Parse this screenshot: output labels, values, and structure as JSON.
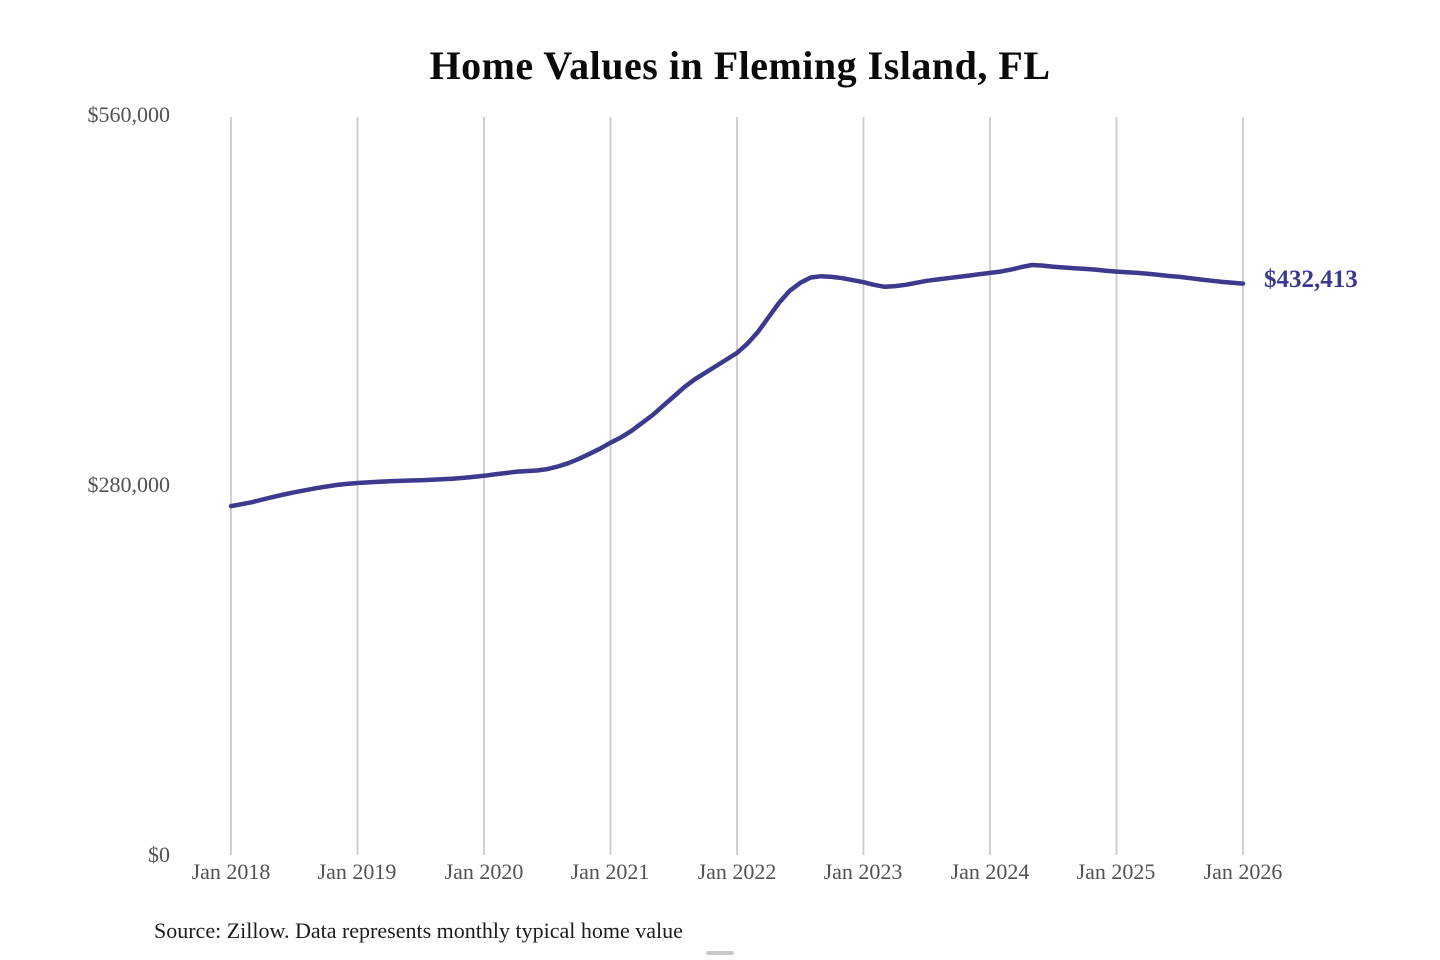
{
  "title": "Home Values in Fleming Island, FL",
  "annotation": {
    "end_label": "$432,413",
    "end_value": 432413
  },
  "footer": {
    "source": "Source: Zillow. Data represents monthly typical home value"
  },
  "colors": {
    "line": "#3d3a8e",
    "grid": "#cbcbcb",
    "tick_text": "#525252",
    "annotation_text": "#3b3890",
    "title_text": "#0a0a0a",
    "background": "#ffffff"
  },
  "chart_data": {
    "type": "line",
    "title": "Home Values in Fleming Island, FL",
    "xlabel": "",
    "ylabel": "",
    "ylim": [
      0,
      560000
    ],
    "grid": "vertical-only",
    "legend": "none",
    "line_color": "#3d3a8e",
    "grid_color": "#cbcbcb",
    "x_ticks": [
      "Jan 2018",
      "Jan 2019",
      "Jan 2020",
      "Jan 2021",
      "Jan 2022",
      "Jan 2023",
      "Jan 2024",
      "Jan 2025",
      "Jan 2026"
    ],
    "y_ticks": [
      "$560,000",
      "$280,000",
      "$0"
    ],
    "y_tick_values": [
      560000,
      280000,
      0
    ],
    "series_name": "Typical home value (monthly)",
    "x_start_month": "2018-01",
    "x_end_month": "2026-01",
    "end_label": "$432,413",
    "values": [
      264000,
      265500,
      267000,
      269000,
      271000,
      272800,
      274500,
      276000,
      277500,
      278800,
      280000,
      280800,
      281500,
      282000,
      282400,
      282800,
      283100,
      283400,
      283600,
      283900,
      284300,
      284800,
      285400,
      286100,
      287000,
      288000,
      289000,
      290000,
      290500,
      291000,
      292000,
      294000,
      296500,
      299800,
      303500,
      307500,
      312000,
      316000,
      321000,
      327000,
      333000,
      340000,
      347000,
      354000,
      360000,
      365000,
      370000,
      375000,
      380000,
      387000,
      396000,
      407000,
      418000,
      427000,
      433000,
      437000,
      438000,
      437500,
      436500,
      435000,
      433500,
      431500,
      430000,
      430500,
      431500,
      433000,
      434500,
      435500,
      436500,
      437500,
      438500,
      439500,
      440500,
      441500,
      443000,
      445000,
      446500,
      446000,
      445200,
      444600,
      444000,
      443500,
      443000,
      442200,
      441500,
      441000,
      440500,
      439800,
      439000,
      438200,
      437500,
      436500,
      435500,
      434600,
      433700,
      433000,
      432413
    ]
  }
}
